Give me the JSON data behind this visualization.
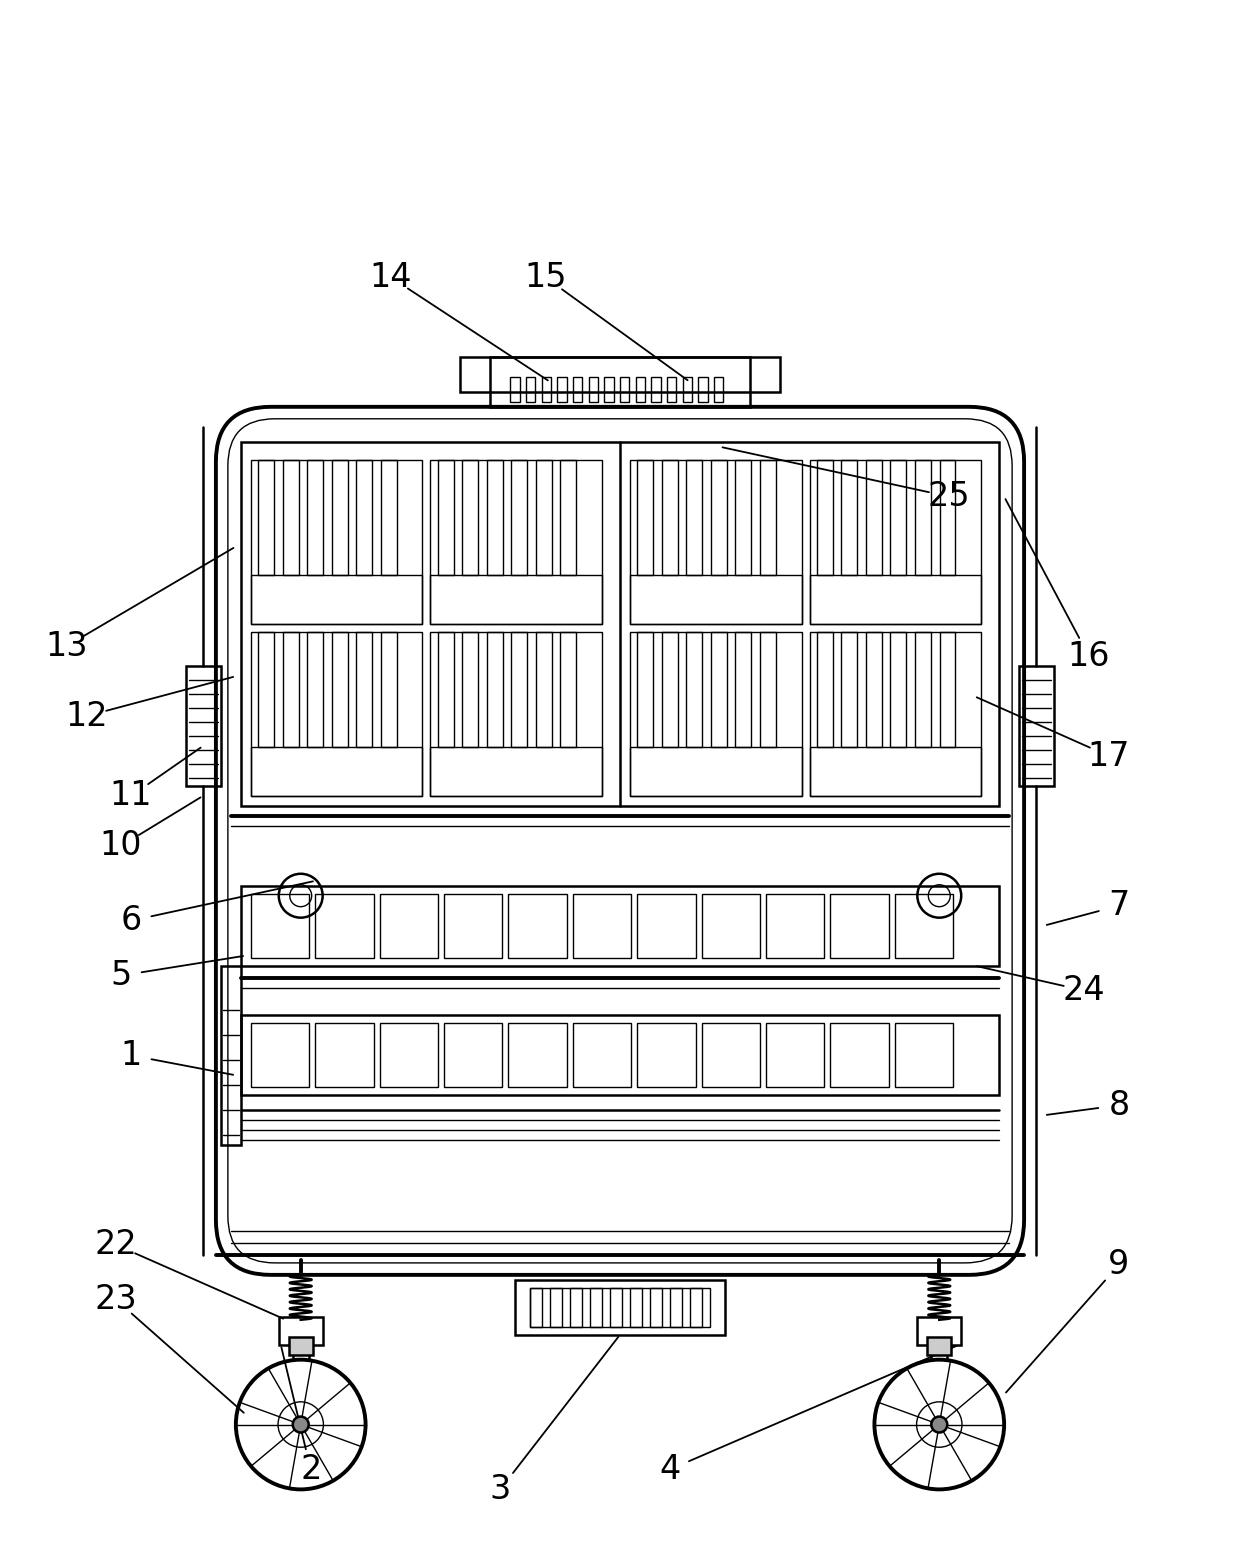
{
  "bg_color": "#ffffff",
  "line_color": "#000000",
  "fig_width": 12.4,
  "fig_height": 15.46,
  "lw": 1.8,
  "lw_thin": 1.0,
  "lw_thick": 2.8,
  "label_fontsize": 24
}
